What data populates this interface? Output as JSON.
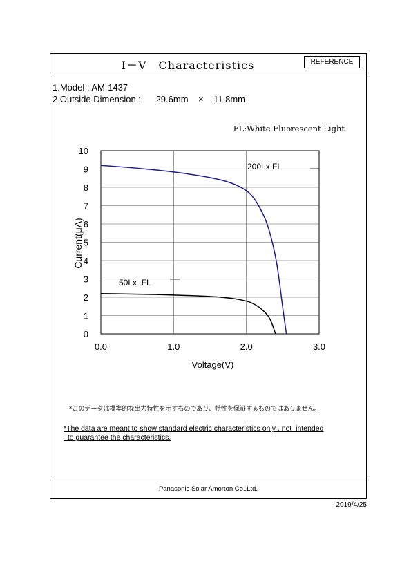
{
  "header": {
    "title": "Ⅰ－Ⅴ　Characteristics",
    "badge": "REFERENCE"
  },
  "spec": {
    "model_line": "1.Model : AM-1437",
    "dimension_line": "2.Outside Dimension :      29.6mm    ×    11.8mm"
  },
  "chart_data": {
    "type": "line",
    "title": "",
    "legend_note": "FL:White Fluorescent Light",
    "xlabel": "Voltage(V)",
    "ylabel": "Current(μA)",
    "xlim": [
      0,
      3
    ],
    "ylim": [
      0,
      10
    ],
    "x_ticks": [
      "0.0",
      "1.0",
      "2.0",
      "3.0"
    ],
    "y_ticks": [
      "0",
      "1",
      "2",
      "3",
      "4",
      "5",
      "6",
      "7",
      "8",
      "9",
      "10"
    ],
    "grid": true,
    "series": [
      {
        "name": "200Lx FL",
        "color": "#1a1a8c",
        "x": [
          0.0,
          0.5,
          1.0,
          1.5,
          1.8,
          2.0,
          2.1,
          2.2,
          2.3,
          2.4,
          2.45,
          2.5,
          2.55
        ],
        "y": [
          9.2,
          9.05,
          8.85,
          8.55,
          8.25,
          7.85,
          7.45,
          6.8,
          5.9,
          4.3,
          3.0,
          1.4,
          0.0
        ]
      },
      {
        "name": "50Lx  FL",
        "color": "#000000",
        "x": [
          0.0,
          0.5,
          1.0,
          1.5,
          1.8,
          2.0,
          2.1,
          2.2,
          2.3,
          2.35,
          2.4
        ],
        "y": [
          2.2,
          2.17,
          2.12,
          2.05,
          1.95,
          1.8,
          1.65,
          1.4,
          1.0,
          0.6,
          0.0
        ]
      }
    ]
  },
  "notes": {
    "jp": "*このデータは標準的な出力特性を示すものであり、特性を保証するものではありません。",
    "en_line1": "*The data are meant to show standard electric characteristics only , not  intended",
    "en_line2": "  to guarantee the characteristics."
  },
  "footer": {
    "company": "Panasonic Solar Amorton Co.,Ltd.",
    "date": "2019/4/25"
  }
}
